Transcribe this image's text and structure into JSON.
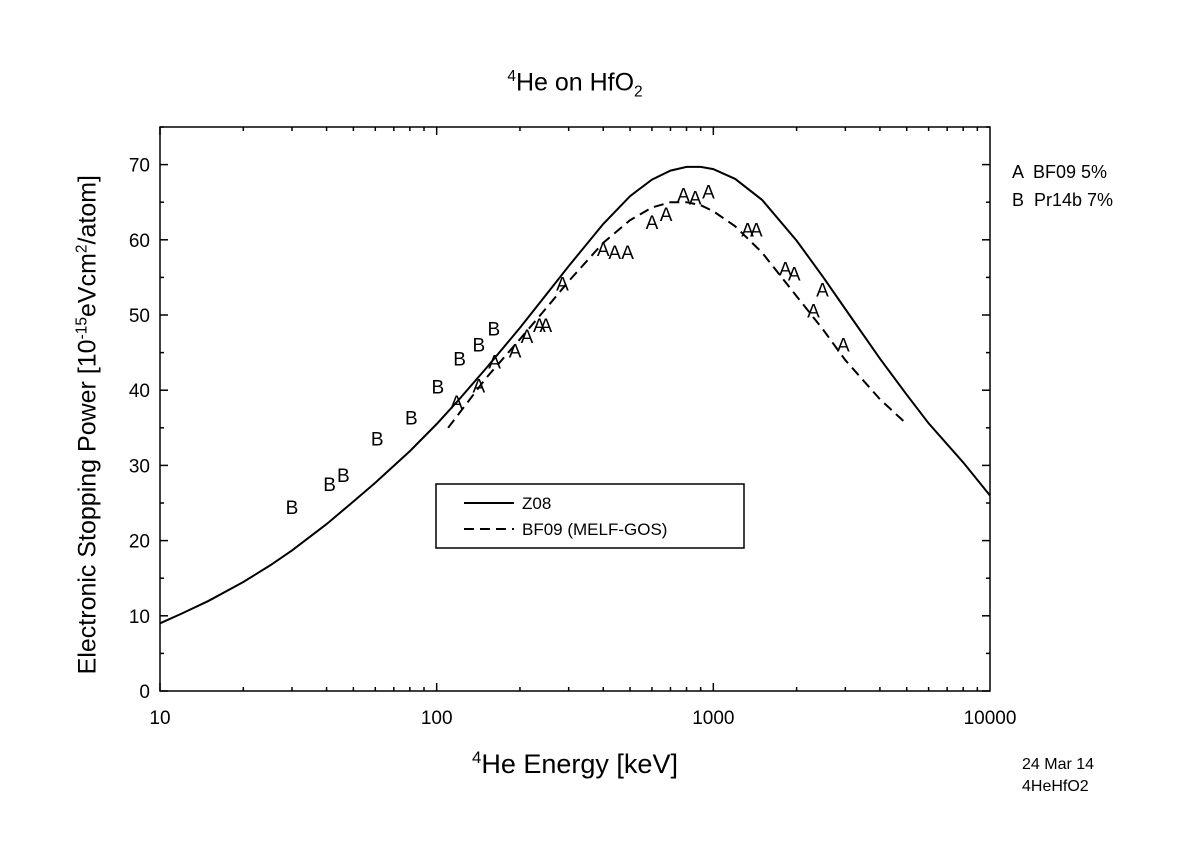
{
  "chart_data": {
    "type": "line",
    "title": {
      "sup": "4",
      "main": "He on HfO",
      "sub": "2"
    },
    "xlabel": {
      "sup": "4",
      "main": "He Energy [keV]"
    },
    "ylabel": {
      "pre": "Electronic Stopping Power [10",
      "sup1": "-15",
      "mid": "eVcm",
      "sup2": "2",
      "post": "/atom]"
    },
    "xscale": "log",
    "xlim": [
      10,
      10000
    ],
    "ylim": [
      0,
      75
    ],
    "xticks": [
      10,
      100,
      1000,
      10000
    ],
    "yticks": [
      0,
      10,
      20,
      30,
      40,
      50,
      60,
      70
    ],
    "series": [
      {
        "name": "Z08",
        "style": "solid",
        "x": [
          10,
          12,
          15,
          20,
          25,
          30,
          40,
          50,
          60,
          80,
          100,
          120,
          150,
          200,
          250,
          300,
          400,
          500,
          600,
          700,
          800,
          900,
          1000,
          1200,
          1500,
          2000,
          2500,
          3000,
          4000,
          5000,
          6000,
          8000,
          10000
        ],
        "y": [
          9.0,
          10.3,
          12.0,
          14.5,
          16.7,
          18.7,
          22.2,
          25.2,
          27.7,
          31.9,
          35.5,
          38.7,
          42.8,
          48.3,
          52.8,
          56.5,
          62.1,
          65.8,
          68.0,
          69.2,
          69.7,
          69.7,
          69.4,
          68.1,
          65.3,
          59.9,
          55.0,
          50.8,
          44.2,
          39.4,
          35.6,
          30.4,
          26.0
        ]
      },
      {
        "name": "BF09 (MELF-GOS)",
        "style": "dashed",
        "x": [
          110,
          130,
          150,
          200,
          250,
          300,
          400,
          500,
          600,
          700,
          800,
          900,
          1000,
          1200,
          1500,
          2000,
          2500,
          3000,
          4000,
          5000
        ],
        "y": [
          35.0,
          38.5,
          41.5,
          46.8,
          51.0,
          54.5,
          59.6,
          62.6,
          64.3,
          65.0,
          65.0,
          64.6,
          63.8,
          61.8,
          58.3,
          52.5,
          48.0,
          44.0,
          38.8,
          35.5
        ]
      }
    ],
    "datasets": [
      {
        "marker": "A",
        "name": "BF09 5%",
        "points": [
          [
            118,
            38.4
          ],
          [
            142,
            40.6
          ],
          [
            162,
            43.8
          ],
          [
            192,
            45.3
          ],
          [
            212,
            47.2
          ],
          [
            235,
            48.7
          ],
          [
            248,
            48.7
          ],
          [
            285,
            54.2
          ],
          [
            400,
            58.8
          ],
          [
            440,
            58.4
          ],
          [
            490,
            58.4
          ],
          [
            600,
            62.4
          ],
          [
            675,
            63.4
          ],
          [
            780,
            66.0
          ],
          [
            860,
            65.6
          ],
          [
            960,
            66.4
          ],
          [
            1330,
            61.4
          ],
          [
            1430,
            61.4
          ],
          [
            1820,
            56.2
          ],
          [
            1960,
            55.5
          ],
          [
            2300,
            50.6
          ],
          [
            2480,
            53.4
          ],
          [
            2950,
            46.1
          ]
        ]
      },
      {
        "marker": "B",
        "name": "Pr14b 7%",
        "points": [
          [
            30,
            24.5
          ],
          [
            41,
            27.5
          ],
          [
            46,
            28.7
          ],
          [
            61,
            33.6
          ],
          [
            81,
            36.4
          ],
          [
            101,
            40.5
          ],
          [
            121,
            44.2
          ],
          [
            142,
            46.1
          ],
          [
            161,
            48.2
          ]
        ]
      }
    ],
    "legend": {
      "placement": "lower-center",
      "entries": [
        "Z08",
        "BF09 (MELF-GOS)"
      ]
    }
  },
  "side_legend": [
    "A  BF09 5%",
    "B  Pr14b 7%"
  ],
  "stamp": {
    "date": "24 Mar 14",
    "file": "4HeHfO2"
  }
}
